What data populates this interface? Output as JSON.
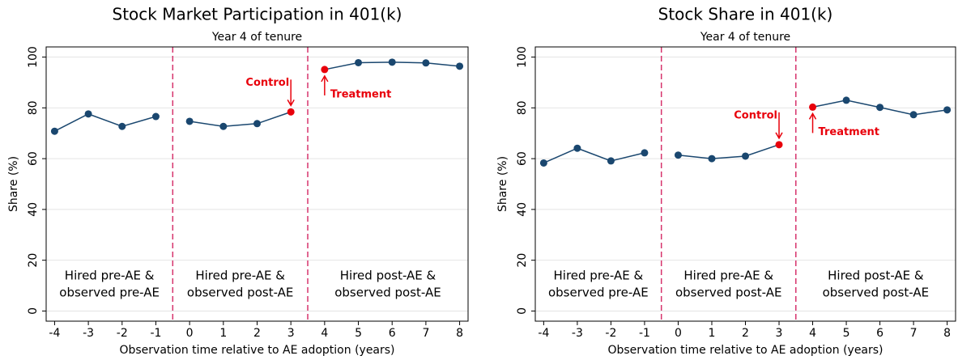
{
  "chart_data": [
    {
      "type": "line",
      "title": "Stock Market Participation in 401(k)",
      "subtitle": "Year 4 of tenure",
      "y_label": "Share (%)",
      "x_label": "Observation time relative to AE adoption (years)",
      "xlim": [
        -4.25,
        8.25
      ],
      "xticks": [
        -4,
        -3,
        -2,
        -1,
        0,
        1,
        2,
        3,
        4,
        5,
        6,
        7,
        8
      ],
      "ylim": [
        -4,
        104
      ],
      "yticks": [
        0,
        20,
        40,
        60,
        80,
        100
      ],
      "grid": true,
      "series": [
        {
          "color": "#1a476f",
          "x": [
            -4,
            -3,
            -2,
            -1
          ],
          "values": [
            70.8,
            77.6,
            72.7,
            76.6
          ]
        },
        {
          "color": "#1a476f",
          "x": [
            0,
            1,
            2,
            3
          ],
          "values": [
            74.7,
            72.7,
            73.8,
            78.4
          ]
        },
        {
          "color": "#1a476f",
          "x": [
            4,
            5,
            6,
            7,
            8
          ],
          "values": [
            95.1,
            97.8,
            98.0,
            97.7,
            96.4
          ]
        }
      ],
      "highlight": {
        "x": [
          3,
          4
        ],
        "color": "#e8000b"
      },
      "vlines": [
        -0.5,
        3.5
      ],
      "vline_color": "#d6336c",
      "regions": [
        [
          "Hired pre-AE &",
          "observed pre-AE"
        ],
        [
          "Hired pre-AE &",
          "observed post-AE"
        ],
        [
          "Hired post-AE &",
          "observed post-AE"
        ]
      ],
      "annotations": [
        {
          "text": "Control",
          "x": 3
        },
        {
          "text": "Treatment",
          "x": 4
        }
      ]
    },
    {
      "type": "line",
      "title": "Stock Share in 401(k)",
      "subtitle": "Year 4 of tenure",
      "y_label": "Share (%)",
      "x_label": "Observation time relative to AE adoption (years)",
      "xlim": [
        -4.25,
        8.25
      ],
      "xticks": [
        -4,
        -3,
        -2,
        -1,
        0,
        1,
        2,
        3,
        4,
        5,
        6,
        7,
        8
      ],
      "ylim": [
        -4,
        104
      ],
      "yticks": [
        0,
        20,
        40,
        60,
        80,
        100
      ],
      "grid": true,
      "series": [
        {
          "color": "#1a476f",
          "x": [
            -4,
            -3,
            -2,
            -1
          ],
          "values": [
            58.3,
            64.1,
            59.1,
            62.3
          ]
        },
        {
          "color": "#1a476f",
          "x": [
            0,
            1,
            2,
            3
          ],
          "values": [
            61.4,
            60.0,
            61.0,
            65.5
          ]
        },
        {
          "color": "#1a476f",
          "x": [
            4,
            5,
            6,
            7,
            8
          ],
          "values": [
            80.3,
            83.0,
            80.2,
            77.3,
            79.2
          ]
        }
      ],
      "highlight": {
        "x": [
          3,
          4
        ],
        "color": "#e8000b"
      },
      "vlines": [
        -0.5,
        3.5
      ],
      "vline_color": "#d6336c",
      "regions": [
        [
          "Hired pre-AE &",
          "observed pre-AE"
        ],
        [
          "Hired pre-AE &",
          "observed post-AE"
        ],
        [
          "Hired post-AE &",
          "observed post-AE"
        ]
      ],
      "annotations": [
        {
          "text": "Control",
          "x": 3
        },
        {
          "text": "Treatment",
          "x": 4
        }
      ]
    }
  ]
}
